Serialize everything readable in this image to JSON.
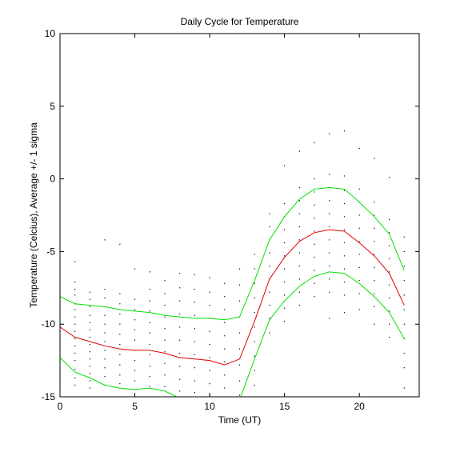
{
  "chart_data": {
    "type": "line",
    "title": "Daily Cycle for Temperature",
    "xlabel": "Time (UT)",
    "ylabel": "Temperature (Celcius), Average +/- 1 sigma",
    "xlim": [
      0,
      24
    ],
    "ylim": [
      -15,
      10
    ],
    "xticks": [
      0,
      5,
      10,
      15,
      20
    ],
    "yticks": [
      -15,
      -10,
      -5,
      0,
      5,
      10
    ],
    "grid": false,
    "x": [
      0,
      1,
      2,
      3,
      4,
      5,
      6,
      7,
      8,
      9,
      10,
      11,
      12,
      13,
      14,
      15,
      16,
      17,
      18,
      19,
      20,
      21,
      22,
      23
    ],
    "series": [
      {
        "color": "#00e000",
        "values": [
          -8.1,
          -8.6,
          -8.7,
          -8.8,
          -9.0,
          -9.1,
          -9.2,
          -9.4,
          -9.5,
          -9.6,
          -9.6,
          -9.7,
          -9.5,
          -7.0,
          -4.2,
          -2.6,
          -1.4,
          -0.7,
          -0.6,
          -0.7,
          -1.6,
          -2.6,
          -3.8,
          -6.3
        ]
      },
      {
        "color": "#e00000",
        "values": [
          -10.2,
          -10.9,
          -11.2,
          -11.5,
          -11.7,
          -11.8,
          -11.8,
          -12.0,
          -12.3,
          -12.4,
          -12.5,
          -12.8,
          -12.4,
          -9.8,
          -6.9,
          -5.4,
          -4.3,
          -3.7,
          -3.5,
          -3.6,
          -4.4,
          -5.3,
          -6.5,
          -8.7
        ]
      },
      {
        "color": "#00e000",
        "values": [
          -12.3,
          -13.3,
          -13.7,
          -14.2,
          -14.4,
          -14.5,
          -14.4,
          -14.6,
          -15.1,
          -15.3,
          -15.4,
          -15.8,
          -15.2,
          -12.4,
          -9.7,
          -8.4,
          -7.4,
          -6.7,
          -6.4,
          -6.5,
          -7.2,
          -8.1,
          -9.2,
          -11.0
        ]
      }
    ],
    "scatter": {
      "color": "#000000",
      "points_per_hour": [
        [
          -7.3,
          -7.7,
          -8.1,
          -8.5,
          -8.9,
          -9.3,
          -9.7,
          -10.1,
          -10.5,
          -10.9,
          -11.3,
          -11.7,
          -12.1,
          -12.6,
          -13.1,
          -13.6
        ],
        [
          -7.1,
          -7.6,
          -8.0,
          -8.6,
          -9.0,
          -9.5,
          -10.0,
          -10.5,
          -11.0,
          -11.5,
          -12.0,
          -12.5,
          -13.1,
          -13.7,
          -14.2,
          -5.7
        ],
        [
          -7.8,
          -8.3,
          -8.8,
          -9.4,
          -9.9,
          -10.4,
          -10.9,
          -11.4,
          -11.9,
          -12.4,
          -12.9,
          -13.4,
          -13.9,
          -14.4
        ],
        [
          -4.2,
          -7.6,
          -8.2,
          -8.8,
          -9.4,
          -10.0,
          -10.6,
          -11.2,
          -11.8,
          -12.4,
          -13.0,
          -13.6,
          -14.2
        ],
        [
          -4.5,
          -7.9,
          -8.6,
          -9.3,
          -10.0,
          -10.7,
          -11.4,
          -12.1,
          -12.8,
          -13.5,
          -14.1
        ],
        [
          -6.2,
          -8.3,
          -9.0,
          -9.7,
          -10.4,
          -11.1,
          -11.8,
          -12.5,
          -13.2,
          -13.9,
          -14.5
        ],
        [
          -6.4,
          -7.6,
          -8.4,
          -9.1,
          -9.9,
          -10.6,
          -11.4,
          -12.1,
          -12.9,
          -13.6,
          -14.3
        ],
        [
          -7.0,
          -7.9,
          -8.7,
          -9.5,
          -10.3,
          -11.1,
          -11.9,
          -12.7,
          -13.5,
          -14.3,
          -15.0
        ],
        [
          -6.5,
          -7.5,
          -8.4,
          -9.3,
          -10.2,
          -11.1,
          -12.0,
          -12.9,
          -13.8,
          -14.6
        ],
        [
          -6.6,
          -7.6,
          -8.5,
          -9.4,
          -10.3,
          -11.2,
          -12.1,
          -13.0,
          -13.9,
          -14.7
        ],
        [
          -6.8,
          -7.8,
          -8.7,
          -9.6,
          -10.5,
          -11.4,
          -12.3,
          -13.2,
          -14.1,
          -14.9
        ],
        [
          -7.2,
          -8.1,
          -9.0,
          -9.9,
          -10.8,
          -11.7,
          -12.6,
          -13.5,
          -14.4
        ],
        [
          -6.2,
          -7.3,
          -8.4,
          -9.5,
          -10.6,
          -11.7,
          -12.8,
          -13.9,
          -14.9
        ],
        [
          -5.2,
          -6.2,
          -7.2,
          -8.2,
          -9.2,
          -10.2,
          -11.2,
          -12.2,
          -13.2,
          -14.2
        ],
        [
          -2.4,
          -3.3,
          -4.2,
          -5.1,
          -6.0,
          -6.9,
          -7.8,
          -8.7,
          -9.6,
          -10.6
        ],
        [
          0.9,
          -1.7,
          -2.6,
          -3.5,
          -4.4,
          -5.3,
          -6.2,
          -7.1,
          -8.0,
          -8.9,
          -9.8
        ],
        [
          1.9,
          -0.6,
          -1.5,
          -2.4,
          -3.3,
          -4.2,
          -5.1,
          -6.0,
          -6.9,
          -7.8,
          -8.7
        ],
        [
          2.5,
          0.0,
          -0.9,
          -1.8,
          -2.7,
          -3.6,
          -4.5,
          -5.4,
          -6.3,
          -7.2,
          -8.1
        ],
        [
          3.1,
          0.3,
          -0.6,
          -1.5,
          -2.4,
          -3.3,
          -4.2,
          -5.1,
          -6.0,
          -6.9,
          -7.8,
          -9.6
        ],
        [
          3.3,
          0.2,
          -0.8,
          -1.7,
          -2.6,
          -3.5,
          -4.4,
          -5.3,
          -6.2,
          -7.1,
          -8.0,
          -9.2
        ],
        [
          2.1,
          -0.7,
          -1.6,
          -2.5,
          -3.4,
          -4.3,
          -5.2,
          -6.1,
          -7.0,
          -7.9,
          -9.0
        ],
        [
          1.4,
          -1.6,
          -2.5,
          -3.4,
          -4.3,
          -5.2,
          -6.1,
          -7.0,
          -7.9,
          -8.8,
          -10.0
        ],
        [
          0.1,
          -2.8,
          -3.7,
          -4.6,
          -5.5,
          -6.4,
          -7.3,
          -8.2,
          -9.1,
          -10.0,
          -10.9
        ],
        [
          -4.0,
          -5.0,
          -6.0,
          -7.0,
          -8.0,
          -9.0,
          -10.0,
          -11.0,
          -12.0,
          -13.0,
          -14.4
        ]
      ]
    }
  }
}
